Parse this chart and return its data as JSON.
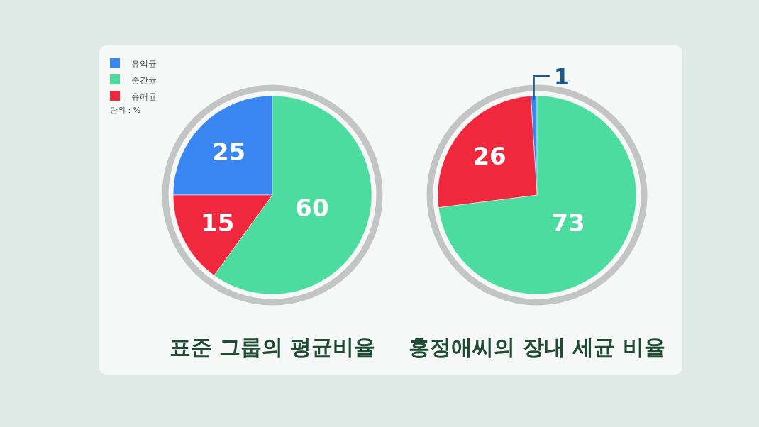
{
  "chart_data": [
    {
      "type": "pie",
      "title": "표준 그룹의 평균비율",
      "categories": [
        "유익균",
        "중간균",
        "유해균"
      ],
      "values": [
        25,
        60,
        15
      ],
      "colors": [
        "#3a86f0",
        "#4ddc9f",
        "#f0283e"
      ],
      "data_labels": true,
      "legend": "top left",
      "annotations": [
        "단위 : %"
      ]
    },
    {
      "type": "pie",
      "title": "홍정애씨의 장내 세균 비율",
      "categories": [
        null,
        null,
        null
      ],
      "values": [
        1,
        73,
        26
      ],
      "colors": [
        "#3a86f0",
        "#4ddc9f",
        "#f0283e"
      ],
      "data_labels": true
    }
  ]
}
